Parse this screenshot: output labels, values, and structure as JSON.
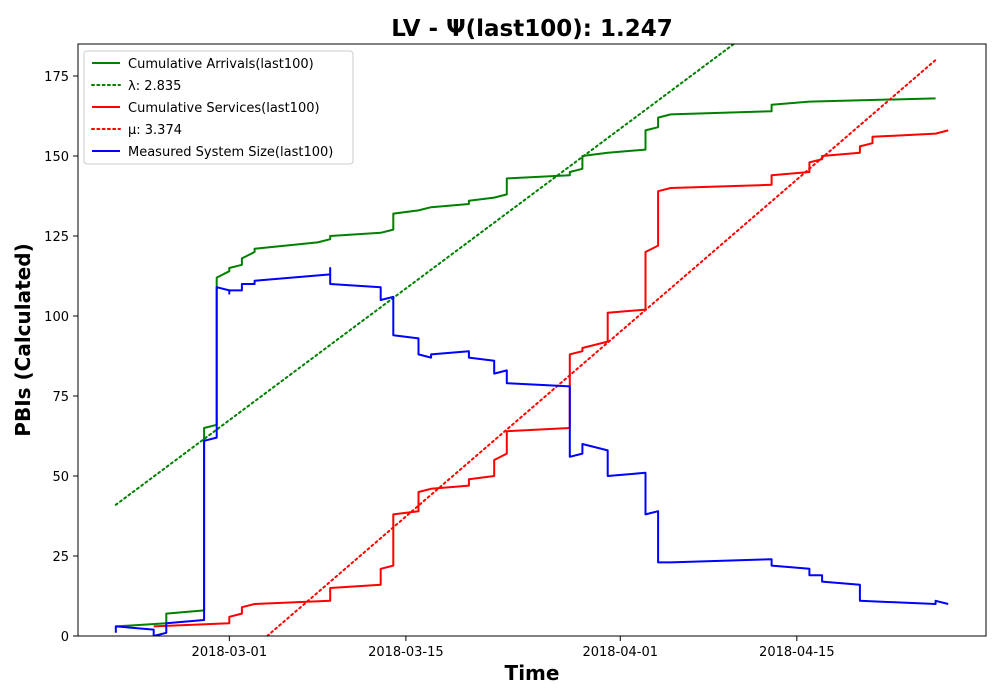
{
  "chart_data": {
    "type": "line",
    "title": "LV -  Ψ(last100): 1.247",
    "xlabel": "Time",
    "ylabel": "PBIs (Calculated)",
    "xlim": [
      "2018-02-17",
      "2018-04-30"
    ],
    "ylim": [
      0,
      185
    ],
    "x_ticks": [
      "2018-03-01",
      "2018-03-15",
      "2018-04-01",
      "2018-04-15"
    ],
    "y_ticks": [
      0,
      25,
      50,
      75,
      100,
      125,
      150,
      175
    ],
    "grid": false,
    "legend_position": "top-left",
    "series": [
      {
        "name": "Cumulative Arrivals(last100)",
        "color": "#008000",
        "style": "solid",
        "points": [
          [
            "2018-02-20",
            3
          ],
          [
            "2018-02-24",
            4
          ],
          [
            "2018-02-24",
            7
          ],
          [
            "2018-02-27",
            8
          ],
          [
            "2018-02-27",
            65
          ],
          [
            "2018-02-28",
            66
          ],
          [
            "2018-02-28",
            112
          ],
          [
            "2018-03-01",
            114
          ],
          [
            "2018-03-01",
            115
          ],
          [
            "2018-03-02",
            116
          ],
          [
            "2018-03-02",
            118
          ],
          [
            "2018-03-03",
            120
          ],
          [
            "2018-03-03",
            121
          ],
          [
            "2018-03-08",
            123
          ],
          [
            "2018-03-09",
            124
          ],
          [
            "2018-03-09",
            125
          ],
          [
            "2018-03-13",
            126
          ],
          [
            "2018-03-14",
            127
          ],
          [
            "2018-03-14",
            132
          ],
          [
            "2018-03-16",
            133
          ],
          [
            "2018-03-17",
            134
          ],
          [
            "2018-03-20",
            135
          ],
          [
            "2018-03-20",
            136
          ],
          [
            "2018-03-22",
            137
          ],
          [
            "2018-03-23",
            138
          ],
          [
            "2018-03-23",
            143
          ],
          [
            "2018-03-28",
            144
          ],
          [
            "2018-03-28",
            145
          ],
          [
            "2018-03-29",
            146
          ],
          [
            "2018-03-29",
            150
          ],
          [
            "2018-03-31",
            151
          ],
          [
            "2018-04-03",
            152
          ],
          [
            "2018-04-03",
            158
          ],
          [
            "2018-04-04",
            159
          ],
          [
            "2018-04-04",
            162
          ],
          [
            "2018-04-05",
            163
          ],
          [
            "2018-04-13",
            164
          ],
          [
            "2018-04-13",
            166
          ],
          [
            "2018-04-16",
            167
          ],
          [
            "2018-04-26",
            168
          ]
        ]
      },
      {
        "name": "λ: 2.835",
        "color": "#008000",
        "style": "dotted",
        "points": [
          [
            "2018-02-20",
            41
          ],
          [
            "2018-04-10",
            185
          ]
        ]
      },
      {
        "name": "Cumulative Services(last100)",
        "color": "#ff0000",
        "style": "solid",
        "points": [
          [
            "2018-02-23",
            3
          ],
          [
            "2018-02-29",
            4
          ],
          [
            "2018-03-01",
            4
          ],
          [
            "2018-03-01",
            6
          ],
          [
            "2018-03-02",
            7
          ],
          [
            "2018-03-02",
            9
          ],
          [
            "2018-03-03",
            10
          ],
          [
            "2018-03-09",
            11
          ],
          [
            "2018-03-09",
            15
          ],
          [
            "2018-03-13",
            16
          ],
          [
            "2018-03-13",
            21
          ],
          [
            "2018-03-14",
            22
          ],
          [
            "2018-03-14",
            38
          ],
          [
            "2018-03-16",
            39
          ],
          [
            "2018-03-16",
            45
          ],
          [
            "2018-03-17",
            46
          ],
          [
            "2018-03-20",
            47
          ],
          [
            "2018-03-20",
            49
          ],
          [
            "2018-03-22",
            50
          ],
          [
            "2018-03-22",
            55
          ],
          [
            "2018-03-23",
            57
          ],
          [
            "2018-03-23",
            64
          ],
          [
            "2018-03-28",
            65
          ],
          [
            "2018-03-28",
            88
          ],
          [
            "2018-03-29",
            89
          ],
          [
            "2018-03-29",
            90
          ],
          [
            "2018-03-31",
            92
          ],
          [
            "2018-03-31",
            101
          ],
          [
            "2018-04-03",
            102
          ],
          [
            "2018-04-03",
            120
          ],
          [
            "2018-04-04",
            122
          ],
          [
            "2018-04-04",
            139
          ],
          [
            "2018-04-05",
            140
          ],
          [
            "2018-04-13",
            141
          ],
          [
            "2018-04-13",
            144
          ],
          [
            "2018-04-16",
            145
          ],
          [
            "2018-04-16",
            148
          ],
          [
            "2018-04-17",
            149
          ],
          [
            "2018-04-17",
            150
          ],
          [
            "2018-04-20",
            151
          ],
          [
            "2018-04-20",
            153
          ],
          [
            "2018-04-21",
            154
          ],
          [
            "2018-04-21",
            156
          ],
          [
            "2018-04-26",
            157
          ],
          [
            "2018-04-27",
            158
          ]
        ]
      },
      {
        "name": "μ: 3.374",
        "color": "#ff0000",
        "style": "dotted",
        "points": [
          [
            "2018-03-04",
            0
          ],
          [
            "2018-04-26",
            180
          ]
        ]
      },
      {
        "name": "Measured System Size(last100)",
        "color": "#0000ff",
        "style": "solid",
        "points": [
          [
            "2018-02-20",
            1
          ],
          [
            "2018-02-20",
            3
          ],
          [
            "2018-02-23",
            2
          ],
          [
            "2018-02-23",
            0
          ],
          [
            "2018-02-24",
            1
          ],
          [
            "2018-02-24",
            4
          ],
          [
            "2018-02-27",
            5
          ],
          [
            "2018-02-27",
            61
          ],
          [
            "2018-02-28",
            62
          ],
          [
            "2018-02-28",
            63
          ],
          [
            "2018-02-28",
            109
          ],
          [
            "2018-03-01",
            108
          ],
          [
            "2018-03-01",
            107
          ],
          [
            "2018-03-01",
            108
          ],
          [
            "2018-03-02",
            108
          ],
          [
            "2018-03-02",
            110
          ],
          [
            "2018-03-03",
            110
          ],
          [
            "2018-03-03",
            111
          ],
          [
            "2018-03-09",
            113
          ],
          [
            "2018-03-09",
            115
          ],
          [
            "2018-03-09",
            110
          ],
          [
            "2018-03-13",
            109
          ],
          [
            "2018-03-13",
            105
          ],
          [
            "2018-03-14",
            106
          ],
          [
            "2018-03-14",
            94
          ],
          [
            "2018-03-16",
            93
          ],
          [
            "2018-03-16",
            88
          ],
          [
            "2018-03-17",
            87
          ],
          [
            "2018-03-17",
            88
          ],
          [
            "2018-03-20",
            89
          ],
          [
            "2018-03-20",
            87
          ],
          [
            "2018-03-22",
            86
          ],
          [
            "2018-03-22",
            82
          ],
          [
            "2018-03-23",
            83
          ],
          [
            "2018-03-23",
            79
          ],
          [
            "2018-03-28",
            78
          ],
          [
            "2018-03-28",
            56
          ],
          [
            "2018-03-29",
            57
          ],
          [
            "2018-03-29",
            60
          ],
          [
            "2018-03-31",
            58
          ],
          [
            "2018-03-31",
            50
          ],
          [
            "2018-04-03",
            51
          ],
          [
            "2018-04-03",
            38
          ],
          [
            "2018-04-04",
            39
          ],
          [
            "2018-04-04",
            23
          ],
          [
            "2018-04-05",
            23
          ],
          [
            "2018-04-13",
            24
          ],
          [
            "2018-04-13",
            22
          ],
          [
            "2018-04-16",
            21
          ],
          [
            "2018-04-16",
            19
          ],
          [
            "2018-04-17",
            19
          ],
          [
            "2018-04-17",
            17
          ],
          [
            "2018-04-20",
            16
          ],
          [
            "2018-04-20",
            11
          ],
          [
            "2018-04-26",
            10
          ],
          [
            "2018-04-26",
            11
          ],
          [
            "2018-04-27",
            10
          ]
        ]
      }
    ]
  }
}
